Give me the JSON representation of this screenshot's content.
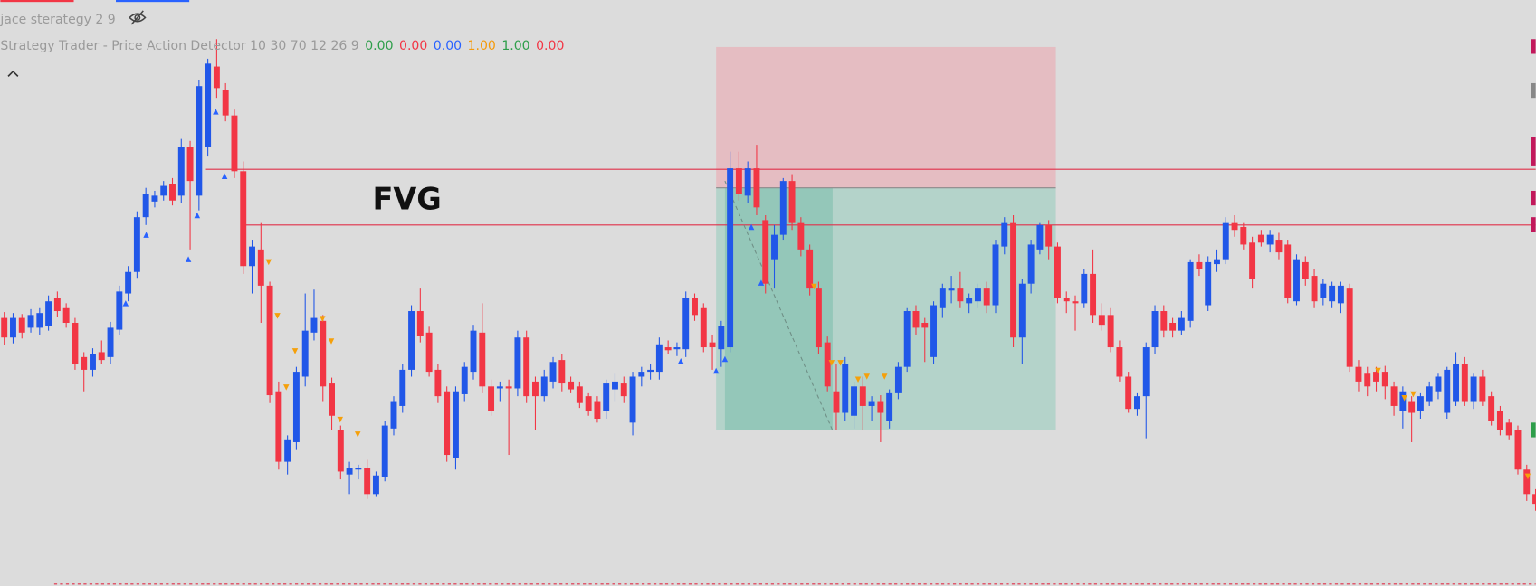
{
  "header": {
    "title": "jace sterategy 2 9",
    "indicator": "Strategy Trader - Price Action Detector 10 30 70 12 26 9",
    "values": [
      {
        "text": "0.00",
        "color": "#2e9e4a"
      },
      {
        "text": "0.00",
        "color": "#f23645"
      },
      {
        "text": "0.00",
        "color": "#2962ff"
      },
      {
        "text": "1.00",
        "color": "#f59a0b"
      },
      {
        "text": "1.00",
        "color": "#2e9e4a"
      },
      {
        "text": "0.00",
        "color": "#f23645"
      }
    ]
  },
  "annotation": "FVG",
  "chart_data": {
    "type": "candlestick",
    "up_color": "#2157e8",
    "down_color": "#f23645",
    "candles": [
      [
        275,
        281,
        247,
        255
      ],
      [
        255,
        280,
        249,
        275
      ],
      [
        275,
        279,
        254,
        260
      ],
      [
        265,
        284,
        260,
        278
      ],
      [
        265,
        285,
        258,
        280
      ],
      [
        267,
        298,
        262,
        292
      ],
      [
        295,
        302,
        276,
        282
      ],
      [
        285,
        290,
        265,
        270
      ],
      [
        270,
        275,
        222,
        228
      ],
      [
        235,
        240,
        200,
        222
      ],
      [
        222,
        244,
        215,
        238
      ],
      [
        240,
        252,
        228,
        232
      ],
      [
        235,
        271,
        228,
        265
      ],
      [
        263,
        308,
        258,
        302
      ],
      [
        300,
        328,
        292,
        322
      ],
      [
        322,
        384,
        316,
        378
      ],
      [
        378,
        408,
        370,
        402
      ],
      [
        394,
        405,
        388,
        400
      ],
      [
        400,
        415,
        395,
        410
      ],
      [
        412,
        418,
        390,
        395
      ],
      [
        400,
        458,
        392,
        450
      ],
      [
        450,
        456,
        345,
        415
      ],
      [
        400,
        518,
        385,
        512
      ],
      [
        450,
        540,
        440,
        535
      ],
      [
        532,
        560,
        500,
        510
      ],
      [
        508,
        515,
        476,
        482
      ],
      [
        482,
        488,
        418,
        425
      ],
      [
        425,
        435,
        320,
        328
      ],
      [
        328,
        355,
        300,
        348
      ],
      [
        345,
        372,
        270,
        308
      ],
      [
        308,
        312,
        188,
        196
      ],
      [
        200,
        210,
        120,
        128
      ],
      [
        128,
        155,
        115,
        150
      ],
      [
        148,
        225,
        140,
        220
      ],
      [
        215,
        300,
        205,
        262
      ],
      [
        260,
        304,
        252,
        275
      ],
      [
        272,
        278,
        190,
        205
      ],
      [
        208,
        214,
        160,
        175
      ],
      [
        160,
        165,
        110,
        118
      ],
      [
        115,
        128,
        95,
        122
      ],
      [
        120,
        125,
        110,
        122
      ],
      [
        122,
        130,
        90,
        95
      ],
      [
        95,
        118,
        92,
        114
      ],
      [
        112,
        170,
        108,
        165
      ],
      [
        162,
        195,
        155,
        190
      ],
      [
        185,
        228,
        178,
        222
      ],
      [
        222,
        288,
        215,
        282
      ],
      [
        282,
        305,
        250,
        257
      ],
      [
        260,
        266,
        215,
        220
      ],
      [
        222,
        228,
        188,
        195
      ],
      [
        200,
        205,
        128,
        135
      ],
      [
        132,
        205,
        120,
        200
      ],
      [
        197,
        230,
        190,
        225
      ],
      [
        220,
        268,
        212,
        262
      ],
      [
        260,
        290,
        198,
        205
      ],
      [
        205,
        212,
        175,
        180
      ],
      [
        203,
        210,
        190,
        205
      ],
      [
        205,
        212,
        135,
        203
      ],
      [
        203,
        262,
        195,
        255
      ],
      [
        255,
        262,
        188,
        195
      ],
      [
        210,
        215,
        160,
        195
      ],
      [
        195,
        222,
        190,
        215
      ],
      [
        210,
        235,
        203,
        230
      ],
      [
        232,
        238,
        200,
        208
      ],
      [
        210,
        215,
        198,
        202
      ],
      [
        205,
        210,
        183,
        188
      ],
      [
        195,
        198,
        175,
        180
      ],
      [
        190,
        195,
        168,
        172
      ],
      [
        180,
        212,
        172,
        208
      ],
      [
        202,
        218,
        190,
        210
      ],
      [
        208,
        215,
        188,
        195
      ],
      [
        168,
        220,
        155,
        215
      ],
      [
        215,
        225,
        205,
        220
      ],
      [
        220,
        228,
        212,
        222
      ],
      [
        220,
        255,
        212,
        248
      ],
      [
        245,
        252,
        238,
        242
      ],
      [
        243,
        250,
        236,
        245
      ],
      [
        243,
        302,
        235,
        295
      ],
      [
        295,
        300,
        272,
        278
      ],
      [
        285,
        290,
        240,
        245
      ],
      [
        250,
        258,
        222,
        245
      ],
      [
        243,
        272,
        225,
        267
      ],
      [
        245,
        445,
        240,
        428
      ],
      [
        428,
        445,
        395,
        402
      ],
      [
        400,
        435,
        392,
        428
      ],
      [
        428,
        452,
        380,
        388
      ],
      [
        375,
        380,
        300,
        310
      ],
      [
        335,
        370,
        305,
        360
      ],
      [
        360,
        418,
        355,
        415
      ],
      [
        415,
        422,
        365,
        372
      ],
      [
        372,
        378,
        338,
        345
      ],
      [
        345,
        350,
        298,
        305
      ],
      [
        305,
        312,
        238,
        245
      ],
      [
        250,
        256,
        200,
        205
      ],
      [
        200,
        228,
        160,
        178
      ],
      [
        178,
        235,
        170,
        228
      ],
      [
        175,
        210,
        162,
        205
      ],
      [
        205,
        215,
        160,
        185
      ],
      [
        185,
        195,
        170,
        190
      ],
      [
        190,
        196,
        148,
        178
      ],
      [
        170,
        202,
        162,
        198
      ],
      [
        198,
        230,
        192,
        225
      ],
      [
        225,
        285,
        220,
        282
      ],
      [
        282,
        288,
        258,
        265
      ],
      [
        270,
        275,
        230,
        265
      ],
      [
        235,
        292,
        228,
        288
      ],
      [
        285,
        310,
        275,
        305
      ],
      [
        303,
        318,
        290,
        305
      ],
      [
        305,
        322,
        285,
        292
      ],
      [
        290,
        300,
        280,
        295
      ],
      [
        292,
        310,
        285,
        305
      ],
      [
        305,
        312,
        280,
        288
      ],
      [
        288,
        355,
        280,
        350
      ],
      [
        348,
        378,
        340,
        372
      ],
      [
        372,
        380,
        245,
        255
      ],
      [
        255,
        315,
        228,
        310
      ],
      [
        310,
        355,
        300,
        350
      ],
      [
        345,
        372,
        340,
        370
      ],
      [
        370,
        375,
        335,
        348
      ],
      [
        348,
        352,
        290,
        295
      ],
      [
        295,
        302,
        280,
        292
      ],
      [
        292,
        298,
        262,
        290
      ],
      [
        290,
        325,
        285,
        320
      ],
      [
        320,
        345,
        270,
        278
      ],
      [
        278,
        290,
        262,
        268
      ],
      [
        278,
        285,
        240,
        245
      ],
      [
        245,
        252,
        210,
        215
      ],
      [
        215,
        220,
        178,
        182
      ],
      [
        182,
        198,
        175,
        195
      ],
      [
        195,
        250,
        152,
        245
      ],
      [
        245,
        288,
        238,
        282
      ],
      [
        282,
        288,
        255,
        262
      ],
      [
        270,
        275,
        255,
        262
      ],
      [
        262,
        282,
        258,
        275
      ],
      [
        272,
        335,
        265,
        332
      ],
      [
        332,
        340,
        318,
        325
      ],
      [
        288,
        338,
        282,
        332
      ],
      [
        330,
        345,
        322,
        335
      ],
      [
        335,
        378,
        330,
        372
      ],
      [
        372,
        380,
        358,
        365
      ],
      [
        368,
        372,
        345,
        350
      ],
      [
        352,
        358,
        305,
        315
      ],
      [
        360,
        365,
        348,
        352
      ],
      [
        350,
        365,
        342,
        360
      ],
      [
        355,
        362,
        335,
        342
      ],
      [
        350,
        355,
        290,
        295
      ],
      [
        292,
        340,
        288,
        335
      ],
      [
        332,
        338,
        308,
        315
      ],
      [
        318,
        325,
        285,
        292
      ],
      [
        295,
        315,
        288,
        310
      ],
      [
        292,
        312,
        285,
        308
      ],
      [
        290,
        312,
        280,
        308
      ],
      [
        305,
        310,
        220,
        225
      ],
      [
        225,
        232,
        200,
        210
      ],
      [
        218,
        225,
        195,
        205
      ],
      [
        220,
        225,
        200,
        210
      ],
      [
        220,
        226,
        192,
        205
      ],
      [
        205,
        210,
        175,
        185
      ],
      [
        180,
        205,
        162,
        200
      ],
      [
        190,
        195,
        148,
        178
      ],
      [
        180,
        198,
        172,
        195
      ],
      [
        190,
        210,
        185,
        205
      ],
      [
        200,
        218,
        192,
        215
      ],
      [
        178,
        225,
        172,
        222
      ],
      [
        190,
        240,
        185,
        228
      ],
      [
        228,
        235,
        185,
        190
      ],
      [
        190,
        218,
        182,
        215
      ],
      [
        215,
        222,
        185,
        190
      ],
      [
        195,
        200,
        165,
        170
      ],
      [
        180,
        185,
        155,
        160
      ],
      [
        168,
        172,
        150,
        155
      ],
      [
        160,
        165,
        115,
        120
      ],
      [
        120,
        125,
        88,
        95
      ],
      [
        95,
        100,
        78,
        85
      ]
    ]
  }
}
